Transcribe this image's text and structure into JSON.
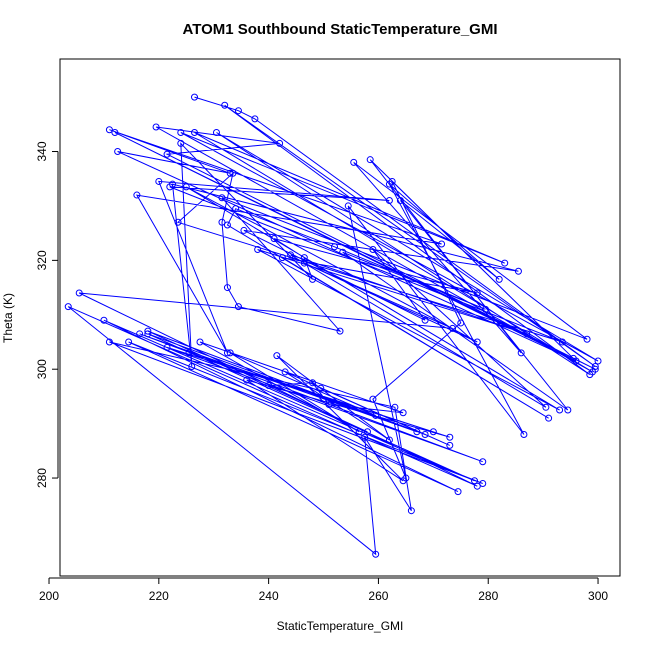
{
  "chart_data": {
    "type": "line",
    "title": "ATOM1 Southbound StaticTemperature_GMI",
    "xlabel": "StaticTemperature_GMI",
    "ylabel": "Theta (K)",
    "xlim": [
      202,
      304
    ],
    "ylim": [
      262,
      357
    ],
    "xticks": [
      200,
      220,
      240,
      260,
      280,
      300
    ],
    "yticks": [
      280,
      300,
      320,
      340
    ],
    "grid": false,
    "legend": "none",
    "series": [
      {
        "color": "#0000ff",
        "marker": "open-circle",
        "points": [
          [
            226.5,
            350.0
          ],
          [
            234.5,
            347.5
          ],
          [
            237.5,
            346.0
          ],
          [
            299.5,
            300.5
          ],
          [
            232.0,
            348.5
          ],
          [
            298.5,
            299.0
          ],
          [
            230.5,
            343.5
          ],
          [
            300.0,
            301.5
          ],
          [
            224.0,
            343.5
          ],
          [
            283.0,
            319.5
          ],
          [
            226.5,
            343.5
          ],
          [
            299.0,
            299.5
          ],
          [
            219.5,
            344.5
          ],
          [
            242.0,
            341.5
          ],
          [
            221.5,
            339.5
          ],
          [
            299.5,
            300.0
          ],
          [
            212.0,
            343.5
          ],
          [
            296.0,
            301.5
          ],
          [
            212.5,
            340.0
          ],
          [
            233.0,
            336.0
          ],
          [
            211.0,
            344.0
          ],
          [
            271.5,
            323.0
          ],
          [
            216.0,
            332.0
          ],
          [
            232.5,
            303.0
          ],
          [
            220.0,
            334.5
          ],
          [
            262.0,
            331.0
          ],
          [
            222.0,
            333.5
          ],
          [
            293.5,
            305.0
          ],
          [
            223.5,
            327.0
          ],
          [
            233.5,
            336.0
          ],
          [
            231.5,
            327.0
          ],
          [
            232.5,
            315.0
          ],
          [
            234.5,
            311.5
          ],
          [
            253.0,
            307.0
          ],
          [
            231.5,
            331.5
          ],
          [
            298.0,
            305.5
          ],
          [
            255.5,
            338.0
          ],
          [
            286.0,
            303.0
          ],
          [
            258.5,
            338.5
          ],
          [
            295.5,
            302.0
          ],
          [
            262.5,
            334.5
          ],
          [
            275.0,
            308.5
          ],
          [
            259.0,
            294.5
          ],
          [
            265.0,
            280.0
          ],
          [
            254.5,
            330.0
          ],
          [
            286.5,
            288.0
          ],
          [
            262.0,
            334.0
          ],
          [
            282.0,
            316.5
          ],
          [
            264.0,
            331.0
          ],
          [
            294.5,
            292.5
          ],
          [
            253.5,
            321.5
          ],
          [
            279.5,
            311.0
          ],
          [
            252.0,
            322.5
          ],
          [
            234.0,
            329.5
          ],
          [
            232.5,
            326.5
          ],
          [
            291.0,
            291.0
          ],
          [
            242.5,
            320.5
          ],
          [
            278.0,
            314.0
          ],
          [
            241.0,
            324.0
          ],
          [
            246.5,
            320.5
          ],
          [
            248.0,
            316.5
          ],
          [
            224.0,
            341.5
          ],
          [
            226.0,
            300.5
          ],
          [
            222.5,
            334.0
          ],
          [
            285.5,
            318.0
          ],
          [
            235.5,
            325.5
          ],
          [
            268.5,
            309.0
          ],
          [
            259.0,
            322.0
          ],
          [
            290.5,
            293.0
          ],
          [
            244.0,
            321.0
          ],
          [
            287.0,
            306.5
          ],
          [
            238.0,
            322.0
          ],
          [
            293.0,
            292.5
          ],
          [
            225.0,
            333.5
          ],
          [
            278.0,
            305.0
          ],
          [
            246.5,
            319.5
          ],
          [
            273.5,
            307.5
          ],
          [
            205.5,
            314.0
          ],
          [
            278.0,
            278.5
          ],
          [
            203.5,
            311.5
          ],
          [
            259.5,
            266.0
          ],
          [
            257.5,
            287.5
          ],
          [
            266.0,
            274.0
          ],
          [
            263.0,
            293.0
          ],
          [
            211.0,
            305.0
          ],
          [
            279.0,
            279.0
          ],
          [
            214.5,
            305.0
          ],
          [
            274.5,
            277.5
          ],
          [
            210.0,
            309.0
          ],
          [
            277.5,
            279.5
          ],
          [
            218.0,
            306.5
          ],
          [
            267.0,
            288.5
          ],
          [
            216.5,
            306.5
          ],
          [
            279.0,
            283.0
          ],
          [
            221.5,
            304.0
          ],
          [
            270.0,
            288.5
          ],
          [
            225.5,
            303.0
          ],
          [
            273.0,
            287.5
          ],
          [
            240.0,
            297.0
          ],
          [
            248.0,
            297.5
          ],
          [
            251.0,
            293.5
          ],
          [
            264.5,
            292.0
          ],
          [
            227.5,
            305.0
          ],
          [
            256.5,
            288.5
          ],
          [
            233.0,
            303.0
          ],
          [
            259.5,
            291.5
          ],
          [
            236.0,
            298.0
          ],
          [
            264.5,
            279.5
          ],
          [
            241.5,
            302.5
          ],
          [
            262.0,
            287.0
          ],
          [
            243.0,
            299.5
          ],
          [
            273.0,
            286.0
          ],
          [
            249.5,
            296.5
          ],
          [
            268.5,
            288.0
          ],
          [
            218.0,
            307.0
          ],
          [
            258.0,
            288.5
          ]
        ]
      }
    ]
  }
}
